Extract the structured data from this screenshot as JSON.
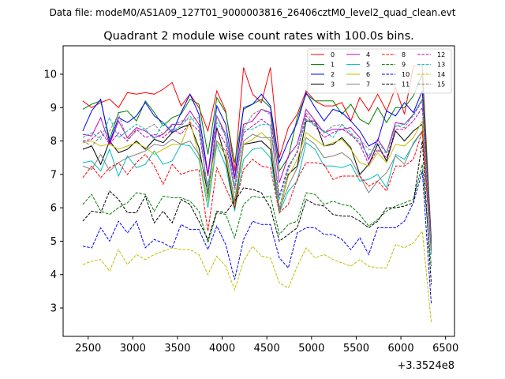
{
  "figure": {
    "suptitle": "Data file: modeM0/AS1A09_127T01_9000003816_26406cztM0_level2_quad_clean.evt"
  },
  "chart_data": {
    "type": "line",
    "title": "Quadrant 2 module wise count rates with 100.0s bins.",
    "xlabel": "",
    "ylabel": "",
    "x_offset_label": "+3.3524e8",
    "xlim": [
      2220,
      6600
    ],
    "ylim": [
      2.15,
      10.85
    ],
    "x_ticks": [
      2500,
      3000,
      3500,
      4000,
      4500,
      5000,
      5500,
      6000,
      6500
    ],
    "y_ticks": [
      3,
      4,
      5,
      6,
      7,
      8,
      9,
      10
    ],
    "grid": false,
    "legend_position": "top-right",
    "x": [
      2440,
      2540,
      2640,
      2740,
      2840,
      2940,
      3040,
      3140,
      3240,
      3340,
      3440,
      3540,
      3640,
      3740,
      3840,
      3940,
      4040,
      4140,
      4240,
      4340,
      4440,
      4540,
      4640,
      4740,
      4840,
      4940,
      5040,
      5140,
      5240,
      5340,
      5440,
      5540,
      5640,
      5740,
      5840,
      5940,
      6040,
      6140,
      6240,
      6340
    ],
    "series": [
      {
        "name": "0",
        "color": "#ff0000",
        "dash": "solid",
        "values": [
          9.2,
          9.0,
          9.15,
          9.25,
          9.0,
          9.45,
          9.4,
          9.45,
          9.4,
          9.55,
          9.75,
          9.05,
          9.4,
          9.0,
          8.3,
          9.5,
          8.9,
          7.1,
          10.2,
          9.4,
          9.15,
          10.2,
          7.5,
          8.4,
          8.8,
          9.5,
          9.2,
          9.05,
          9.05,
          9.15,
          8.6,
          9.3,
          8.9,
          9.4,
          8.9,
          9.6,
          8.8,
          10.25,
          10.25,
          5.0
        ]
      },
      {
        "name": "1",
        "color": "#008000",
        "dash": "solid",
        "values": [
          8.95,
          9.1,
          9.2,
          8.05,
          8.85,
          8.9,
          8.6,
          9.2,
          8.85,
          8.45,
          8.7,
          8.8,
          9.25,
          9.1,
          7.6,
          9.3,
          8.85,
          7.35,
          8.95,
          9.1,
          9.25,
          9.0,
          7.1,
          7.5,
          8.7,
          9.4,
          9.2,
          9.2,
          9.2,
          8.8,
          9.1,
          8.65,
          8.5,
          9.0,
          8.55,
          9.0,
          9.0,
          9.35,
          10.0,
          5.0
        ]
      },
      {
        "name": "2",
        "color": "#0000ff",
        "dash": "solid",
        "values": [
          8.3,
          8.9,
          9.25,
          7.95,
          8.7,
          8.55,
          8.75,
          9.15,
          8.75,
          8.55,
          8.25,
          8.85,
          9.4,
          8.8,
          7.0,
          9.05,
          8.5,
          6.9,
          9.0,
          9.1,
          9.4,
          9.05,
          7.35,
          8.0,
          8.55,
          9.45,
          9.0,
          8.6,
          8.95,
          8.85,
          8.6,
          8.3,
          7.85,
          8.0,
          8.9,
          8.75,
          9.15,
          8.85,
          9.5,
          4.9
        ]
      },
      {
        "name": "3",
        "color": "#000000",
        "dash": "solid",
        "values": [
          7.75,
          7.85,
          7.3,
          8.0,
          7.65,
          7.75,
          8.0,
          7.75,
          8.05,
          7.95,
          8.25,
          8.4,
          8.5,
          7.8,
          6.4,
          8.4,
          7.45,
          5.95,
          7.9,
          7.95,
          8.0,
          7.75,
          5.85,
          7.0,
          7.25,
          8.6,
          8.6,
          7.85,
          7.9,
          8.1,
          7.8,
          7.0,
          7.3,
          7.9,
          7.4,
          8.3,
          8.0,
          8.3,
          8.5,
          4.8
        ]
      },
      {
        "name": "4",
        "color": "#bf00bf",
        "dash": "solid",
        "values": [
          8.2,
          8.15,
          8.7,
          7.9,
          8.6,
          8.1,
          8.4,
          8.3,
          8.1,
          8.2,
          8.5,
          8.5,
          8.9,
          8.5,
          6.95,
          8.75,
          8.2,
          6.85,
          8.5,
          8.6,
          8.95,
          8.85,
          6.75,
          7.55,
          7.9,
          8.95,
          8.6,
          8.25,
          8.35,
          8.35,
          8.4,
          8.1,
          7.45,
          8.05,
          7.65,
          8.55,
          8.5,
          8.8,
          9.25,
          4.85
        ]
      },
      {
        "name": "5",
        "color": "#00bfbf",
        "dash": "solid",
        "values": [
          7.35,
          7.4,
          7.1,
          7.75,
          6.95,
          7.55,
          7.2,
          7.3,
          7.7,
          7.3,
          7.4,
          7.9,
          7.85,
          7.45,
          6.0,
          7.9,
          7.25,
          5.9,
          7.45,
          7.75,
          7.8,
          7.5,
          5.85,
          6.5,
          6.8,
          7.95,
          7.75,
          7.25,
          7.25,
          7.2,
          7.3,
          6.8,
          6.85,
          7.0,
          6.6,
          7.6,
          7.45,
          7.9,
          8.3,
          4.6
        ]
      },
      {
        "name": "6",
        "color": "#bfbf00",
        "dash": "solid",
        "values": [
          7.95,
          8.0,
          7.85,
          7.9,
          7.75,
          7.85,
          7.95,
          7.8,
          7.6,
          7.75,
          7.9,
          7.9,
          8.6,
          7.55,
          6.2,
          8.0,
          7.55,
          6.1,
          7.9,
          8.05,
          8.25,
          8.0,
          5.9,
          6.95,
          7.45,
          8.25,
          8.05,
          7.85,
          7.95,
          8.05,
          7.75,
          7.35,
          7.25,
          7.65,
          7.35,
          7.9,
          7.85,
          8.1,
          8.6,
          4.75
        ]
      },
      {
        "name": "7",
        "color": "#808080",
        "dash": "solid",
        "values": [
          7.25,
          7.15,
          7.6,
          7.1,
          7.35,
          7.5,
          7.6,
          7.7,
          7.9,
          7.85,
          8.05,
          7.9,
          8.0,
          7.6,
          6.7,
          8.0,
          7.7,
          6.2,
          8.0,
          8.2,
          8.1,
          8.1,
          5.95,
          6.65,
          7.2,
          8.1,
          7.9,
          7.5,
          7.55,
          7.65,
          7.45,
          6.95,
          6.45,
          6.8,
          7.05,
          7.55,
          7.3,
          7.95,
          8.3,
          4.75
        ]
      },
      {
        "name": "8",
        "color": "#ff0000",
        "dash": "dashed",
        "values": [
          6.9,
          7.25,
          6.9,
          7.2,
          7.35,
          7.0,
          7.35,
          7.6,
          7.25,
          6.7,
          7.3,
          7.0,
          7.1,
          7.15,
          5.3,
          7.2,
          6.6,
          6.0,
          7.15,
          7.45,
          7.25,
          7.2,
          5.85,
          6.1,
          6.85,
          7.35,
          7.35,
          7.3,
          6.85,
          6.95,
          6.95,
          6.95,
          6.65,
          6.8,
          6.5,
          7.25,
          7.25,
          7.45,
          8.3,
          4.7
        ]
      },
      {
        "name": "9",
        "color": "#008000",
        "dash": "dashed",
        "values": [
          6.1,
          6.4,
          5.9,
          5.8,
          6.0,
          6.15,
          6.45,
          6.4,
          5.9,
          6.35,
          6.3,
          6.3,
          6.2,
          5.9,
          4.95,
          5.85,
          5.8,
          5.1,
          6.1,
          6.35,
          6.3,
          6.35,
          5.2,
          5.5,
          5.6,
          6.45,
          6.4,
          6.1,
          6.2,
          6.1,
          6.05,
          5.8,
          5.45,
          5.65,
          5.9,
          6.05,
          6.15,
          6.25,
          7.3,
          4.25
        ]
      },
      {
        "name": "10",
        "color": "#0000ff",
        "dash": "dashed",
        "values": [
          4.85,
          4.8,
          5.4,
          5.0,
          5.6,
          5.25,
          5.6,
          4.8,
          5.05,
          4.95,
          4.8,
          5.5,
          5.35,
          5.35,
          4.75,
          5.45,
          4.9,
          3.85,
          5.05,
          5.6,
          5.5,
          5.5,
          4.5,
          4.2,
          5.25,
          5.4,
          5.4,
          5.2,
          5.2,
          5.05,
          4.75,
          5.1,
          4.6,
          5.4,
          5.4,
          5.4,
          5.6,
          6.15,
          7.1,
          3.1
        ]
      },
      {
        "name": "11",
        "color": "#000000",
        "dash": "dashed",
        "values": [
          5.6,
          5.9,
          5.85,
          6.5,
          6.25,
          5.85,
          5.85,
          6.35,
          5.55,
          5.9,
          5.55,
          6.25,
          6.1,
          5.6,
          5.05,
          5.9,
          5.85,
          6.2,
          6.6,
          6.55,
          6.45,
          6.0,
          5.0,
          5.2,
          5.4,
          6.25,
          6.1,
          6.05,
          5.8,
          5.75,
          5.75,
          5.6,
          5.4,
          5.6,
          6.0,
          6.0,
          6.05,
          6.15,
          8.0,
          3.7
        ]
      },
      {
        "name": "12",
        "color": "#bf00bf",
        "dash": "dashed",
        "values": [
          8.0,
          8.05,
          8.3,
          7.9,
          8.25,
          8.0,
          8.35,
          8.1,
          8.2,
          8.1,
          8.35,
          8.2,
          8.55,
          8.3,
          6.55,
          8.35,
          7.9,
          6.6,
          8.25,
          8.45,
          8.65,
          8.45,
          6.35,
          7.25,
          7.65,
          8.75,
          8.45,
          8.1,
          8.25,
          8.35,
          8.2,
          7.9,
          7.3,
          7.75,
          7.5,
          8.35,
          8.35,
          8.6,
          9.0,
          4.7
        ]
      },
      {
        "name": "13",
        "color": "#00bfbf",
        "dash": "dashed",
        "values": [
          8.1,
          8.25,
          8.05,
          8.7,
          8.1,
          8.3,
          8.5,
          8.35,
          8.05,
          8.55,
          8.3,
          8.45,
          8.75,
          8.4,
          6.5,
          8.55,
          8.2,
          6.65,
          8.35,
          8.35,
          8.5,
          8.5,
          6.25,
          7.2,
          7.7,
          8.65,
          8.45,
          8.3,
          8.1,
          8.5,
          8.25,
          7.95,
          7.55,
          7.95,
          7.65,
          8.45,
          8.5,
          8.75,
          9.2,
          4.75
        ]
      },
      {
        "name": "14",
        "color": "#bfbf00",
        "dash": "dashed",
        "values": [
          4.3,
          4.4,
          4.45,
          4.1,
          4.75,
          4.3,
          4.6,
          4.45,
          4.6,
          4.7,
          4.8,
          4.75,
          4.75,
          4.6,
          4.0,
          4.55,
          4.25,
          3.55,
          4.4,
          4.85,
          4.55,
          4.5,
          3.75,
          3.6,
          4.25,
          4.8,
          4.5,
          4.6,
          4.45,
          4.35,
          4.25,
          4.45,
          4.25,
          4.2,
          4.2,
          4.9,
          4.8,
          4.95,
          5.3,
          2.55
        ]
      },
      {
        "name": "15",
        "color": "#808080",
        "dash": "dashed",
        "values": [
          8.0,
          7.85,
          8.15,
          8.3,
          8.8,
          8.05,
          8.3,
          8.35,
          8.5,
          8.2,
          8.45,
          8.6,
          8.65,
          8.7,
          6.3,
          8.75,
          8.1,
          6.45,
          8.35,
          8.8,
          8.95,
          8.8,
          6.0,
          7.15,
          7.7,
          8.85,
          8.5,
          8.25,
          8.45,
          8.5,
          8.15,
          8.05,
          7.75,
          7.7,
          7.65,
          8.45,
          8.4,
          8.8,
          9.25,
          4.75
        ]
      }
    ]
  }
}
